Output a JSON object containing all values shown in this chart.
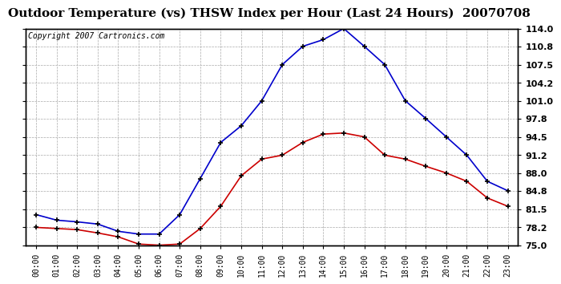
{
  "title": "Outdoor Temperature (vs) THSW Index per Hour (Last 24 Hours)  20070708",
  "copyright": "Copyright 2007 Cartronics.com",
  "hours": [
    0,
    1,
    2,
    3,
    4,
    5,
    6,
    7,
    8,
    9,
    10,
    11,
    12,
    13,
    14,
    15,
    16,
    17,
    18,
    19,
    20,
    21,
    22,
    23
  ],
  "thsw": [
    80.5,
    79.5,
    79.2,
    78.8,
    77.5,
    77.0,
    77.0,
    80.5,
    87.0,
    93.5,
    96.5,
    101.0,
    107.5,
    110.8,
    112.0,
    114.0,
    110.8,
    107.5,
    101.0,
    97.8,
    94.5,
    91.2,
    86.5,
    84.8
  ],
  "temp": [
    78.2,
    78.0,
    77.8,
    77.2,
    76.5,
    75.2,
    75.0,
    75.2,
    78.0,
    82.0,
    87.5,
    90.5,
    91.2,
    93.5,
    95.0,
    95.2,
    94.5,
    91.2,
    90.5,
    89.2,
    88.0,
    86.5,
    83.5,
    82.0
  ],
  "thsw_color": "#0000cc",
  "temp_color": "#cc0000",
  "bg_color": "#ffffff",
  "grid_color": "#aaaaaa",
  "ylim": [
    75.0,
    114.0
  ],
  "yticks": [
    75.0,
    78.2,
    81.5,
    84.8,
    88.0,
    91.2,
    94.5,
    97.8,
    101.0,
    104.2,
    107.5,
    110.8,
    114.0
  ],
  "title_fontsize": 11,
  "copyright_fontsize": 7
}
